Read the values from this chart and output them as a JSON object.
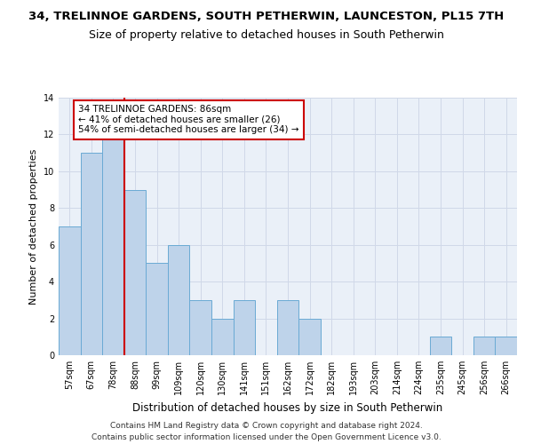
{
  "title": "34, TRELINNOE GARDENS, SOUTH PETHERWIN, LAUNCESTON, PL15 7TH",
  "subtitle": "Size of property relative to detached houses in South Petherwin",
  "xlabel": "Distribution of detached houses by size in South Petherwin",
  "ylabel": "Number of detached properties",
  "categories": [
    "57sqm",
    "67sqm",
    "78sqm",
    "88sqm",
    "99sqm",
    "109sqm",
    "120sqm",
    "130sqm",
    "141sqm",
    "151sqm",
    "162sqm",
    "172sqm",
    "182sqm",
    "193sqm",
    "203sqm",
    "214sqm",
    "224sqm",
    "235sqm",
    "245sqm",
    "256sqm",
    "266sqm"
  ],
  "values": [
    7,
    11,
    12,
    9,
    5,
    6,
    3,
    2,
    3,
    0,
    3,
    2,
    0,
    0,
    0,
    0,
    0,
    1,
    0,
    1,
    1
  ],
  "bar_color": "#bed3ea",
  "bar_edge_color": "#6aaad4",
  "vline_color": "#cc0000",
  "annotation_text": "34 TRELINNOE GARDENS: 86sqm\n← 41% of detached houses are smaller (26)\n54% of semi-detached houses are larger (34) →",
  "annotation_box_color": "#ffffff",
  "annotation_box_edge": "#cc0000",
  "ylim": [
    0,
    14
  ],
  "yticks": [
    0,
    2,
    4,
    6,
    8,
    10,
    12,
    14
  ],
  "grid_color": "#d0d8e8",
  "background_color": "#eaf0f8",
  "footer1": "Contains HM Land Registry data © Crown copyright and database right 2024.",
  "footer2": "Contains public sector information licensed under the Open Government Licence v3.0.",
  "title_fontsize": 9.5,
  "subtitle_fontsize": 9,
  "xlabel_fontsize": 8.5,
  "ylabel_fontsize": 8,
  "tick_fontsize": 7,
  "footer_fontsize": 6.5,
  "annotation_fontsize": 7.5
}
